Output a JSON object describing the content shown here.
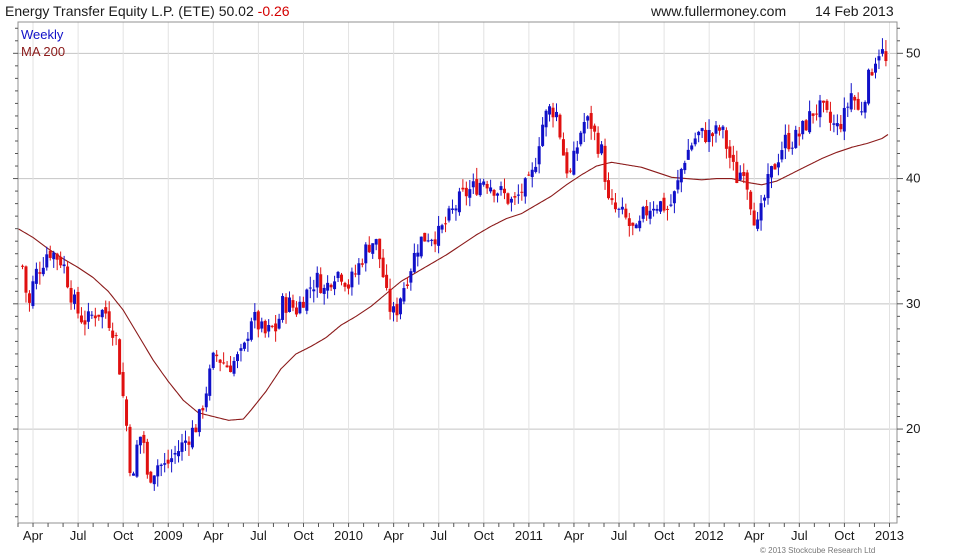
{
  "header": {
    "title": "Energy Transfer Equity L.P. (ETE) 50.02",
    "change": "-0.26",
    "site": "www.fullermoney.com",
    "date": "14 Feb 2013"
  },
  "footer": {
    "copyright": "© 2013 Stockcube Research Ltd"
  },
  "colors": {
    "up": "#1010c8",
    "down": "#e01010",
    "ma": "#8b1a1a",
    "grid": "#d9d9d9",
    "frame": "#909090"
  },
  "chart_data": {
    "type": "candlestick",
    "interval": "Weekly",
    "legend": [
      "Weekly",
      "MA 200"
    ],
    "legend_position": "top-left",
    "grid": true,
    "ylim": [
      12.5,
      52.5
    ],
    "yticks": [
      20,
      30,
      40,
      50
    ],
    "xtick_labels": [
      "Apr",
      "Jul",
      "Oct",
      "2009",
      "Apr",
      "Jul",
      "Oct",
      "2010",
      "Apr",
      "Jul",
      "Oct",
      "2011",
      "Apr",
      "Jul",
      "Oct",
      "2012",
      "Apr",
      "Jul",
      "Oct",
      "2013"
    ],
    "x_range_months": [
      0,
      58.5
    ],
    "price_control_points": [
      [
        0.3,
        33.0
      ],
      [
        0.7,
        29.5
      ],
      [
        1.1,
        32.3
      ],
      [
        1.5,
        33.0
      ],
      [
        2.0,
        34.3
      ],
      [
        2.4,
        34.0
      ],
      [
        3.0,
        33.3
      ],
      [
        3.6,
        30.5
      ],
      [
        4.1,
        29.0
      ],
      [
        4.6,
        28.6
      ],
      [
        5.1,
        29.3
      ],
      [
        5.8,
        29.4
      ],
      [
        6.5,
        27.5
      ],
      [
        7.0,
        22.5
      ],
      [
        7.3,
        19.5
      ],
      [
        7.6,
        15.0
      ],
      [
        7.9,
        18.5
      ],
      [
        8.3,
        20.0
      ],
      [
        8.6,
        16.0
      ],
      [
        8.9,
        16.5
      ],
      [
        9.3,
        17.2
      ],
      [
        9.8,
        17.0
      ],
      [
        10.3,
        17.8
      ],
      [
        10.8,
        18.5
      ],
      [
        11.4,
        19.5
      ],
      [
        12.0,
        20.5
      ],
      [
        12.4,
        22.5
      ],
      [
        12.8,
        24.5
      ],
      [
        13.1,
        26.0
      ],
      [
        13.5,
        25.5
      ],
      [
        14.0,
        25.0
      ],
      [
        14.5,
        25.5
      ],
      [
        15.0,
        26.0
      ],
      [
        15.5,
        29.0
      ],
      [
        15.9,
        28.5
      ],
      [
        16.4,
        27.5
      ],
      [
        16.9,
        28.0
      ],
      [
        17.2,
        28.0
      ],
      [
        17.6,
        30.0
      ],
      [
        18.1,
        30.0
      ],
      [
        18.5,
        29.5
      ],
      [
        19.0,
        30.5
      ],
      [
        19.5,
        31.5
      ],
      [
        20.0,
        32.0
      ],
      [
        20.4,
        31.0
      ],
      [
        21.0,
        32.5
      ],
      [
        21.5,
        32.5
      ],
      [
        22.0,
        31.5
      ],
      [
        22.5,
        32.5
      ],
      [
        23.0,
        34.0
      ],
      [
        23.5,
        35.0
      ],
      [
        23.8,
        35.0
      ],
      [
        24.2,
        33.0
      ],
      [
        24.6,
        30.0
      ],
      [
        25.1,
        29.0
      ],
      [
        25.4,
        30.5
      ],
      [
        26.0,
        32.5
      ],
      [
        26.7,
        35.0
      ],
      [
        27.3,
        35.5
      ],
      [
        28.0,
        35.5
      ],
      [
        28.5,
        36.5
      ],
      [
        29.0,
        37.5
      ],
      [
        29.5,
        38.5
      ],
      [
        30.0,
        39.0
      ],
      [
        30.6,
        39.5
      ],
      [
        31.0,
        40.0
      ],
      [
        31.5,
        39.5
      ],
      [
        32.0,
        39.0
      ],
      [
        32.5,
        38.5
      ],
      [
        33.0,
        38.0
      ],
      [
        33.5,
        39.0
      ],
      [
        34.0,
        39.5
      ],
      [
        34.3,
        40.5
      ],
      [
        34.8,
        44.0
      ],
      [
        35.3,
        45.5
      ],
      [
        35.8,
        45.5
      ],
      [
        36.3,
        42.0
      ],
      [
        36.7,
        40.0
      ],
      [
        37.1,
        42.0
      ],
      [
        37.6,
        44.5
      ],
      [
        38.1,
        44.5
      ],
      [
        38.5,
        43.0
      ],
      [
        38.9,
        42.0
      ],
      [
        39.3,
        38.0
      ],
      [
        39.7,
        37.5
      ],
      [
        40.3,
        37.0
      ],
      [
        40.8,
        36.0
      ],
      [
        41.2,
        35.5
      ],
      [
        41.6,
        37.0
      ],
      [
        42.2,
        38.0
      ],
      [
        42.8,
        38.0
      ],
      [
        43.3,
        37.5
      ],
      [
        43.8,
        39.0
      ],
      [
        44.3,
        41.5
      ],
      [
        44.7,
        42.5
      ],
      [
        45.2,
        43.5
      ],
      [
        45.8,
        43.5
      ],
      [
        46.3,
        43.5
      ],
      [
        46.8,
        44.0
      ],
      [
        47.3,
        42.0
      ],
      [
        47.8,
        40.0
      ],
      [
        48.3,
        41.0
      ],
      [
        48.8,
        38.0
      ],
      [
        49.2,
        36.0
      ],
      [
        49.6,
        38.0
      ],
      [
        50.0,
        40.0
      ],
      [
        50.5,
        41.5
      ],
      [
        51.0,
        43.0
      ],
      [
        51.5,
        43.0
      ],
      [
        52.0,
        43.5
      ],
      [
        52.5,
        44.5
      ],
      [
        53.0,
        45.5
      ],
      [
        53.5,
        45.5
      ],
      [
        54.0,
        44.5
      ],
      [
        54.5,
        44.0
      ],
      [
        55.0,
        45.0
      ],
      [
        55.5,
        47.0
      ],
      [
        56.0,
        45.0
      ],
      [
        56.5,
        47.5
      ],
      [
        57.0,
        49.5
      ],
      [
        57.4,
        50.5
      ],
      [
        57.8,
        49.0
      ]
    ],
    "ma200_control_points": [
      [
        0.0,
        36.0
      ],
      [
        1.0,
        35.3
      ],
      [
        2.0,
        34.4
      ],
      [
        3.0,
        33.6
      ],
      [
        4.0,
        32.9
      ],
      [
        5.0,
        32.1
      ],
      [
        6.0,
        31.0
      ],
      [
        7.0,
        29.5
      ],
      [
        8.0,
        27.5
      ],
      [
        9.0,
        25.5
      ],
      [
        10.0,
        23.8
      ],
      [
        11.0,
        22.3
      ],
      [
        12.0,
        21.3
      ],
      [
        13.0,
        21.0
      ],
      [
        14.0,
        20.7
      ],
      [
        15.0,
        20.8
      ],
      [
        15.5,
        21.5
      ],
      [
        16.5,
        23.0
      ],
      [
        17.5,
        24.8
      ],
      [
        18.5,
        26.0
      ],
      [
        19.5,
        26.6
      ],
      [
        20.5,
        27.3
      ],
      [
        21.5,
        28.3
      ],
      [
        22.5,
        29.0
      ],
      [
        23.5,
        29.8
      ],
      [
        24.5,
        30.8
      ],
      [
        25.5,
        31.8
      ],
      [
        26.5,
        32.5
      ],
      [
        27.5,
        33.2
      ],
      [
        28.5,
        33.9
      ],
      [
        29.5,
        34.7
      ],
      [
        30.5,
        35.5
      ],
      [
        31.5,
        36.2
      ],
      [
        32.5,
        36.8
      ],
      [
        33.5,
        37.2
      ],
      [
        34.5,
        37.9
      ],
      [
        35.5,
        38.6
      ],
      [
        36.5,
        39.5
      ],
      [
        37.5,
        40.3
      ],
      [
        38.5,
        41.0
      ],
      [
        39.5,
        41.3
      ],
      [
        40.5,
        41.1
      ],
      [
        41.5,
        40.9
      ],
      [
        42.5,
        40.5
      ],
      [
        43.5,
        40.1
      ],
      [
        44.5,
        40.0
      ],
      [
        45.5,
        39.9
      ],
      [
        46.5,
        40.0
      ],
      [
        47.5,
        40.0
      ],
      [
        48.5,
        39.7
      ],
      [
        49.5,
        39.5
      ],
      [
        50.5,
        39.8
      ],
      [
        51.5,
        40.4
      ],
      [
        52.5,
        41.0
      ],
      [
        53.5,
        41.6
      ],
      [
        54.5,
        42.1
      ],
      [
        55.5,
        42.5
      ],
      [
        56.5,
        42.8
      ],
      [
        57.5,
        43.2
      ],
      [
        58.0,
        43.6
      ]
    ]
  }
}
